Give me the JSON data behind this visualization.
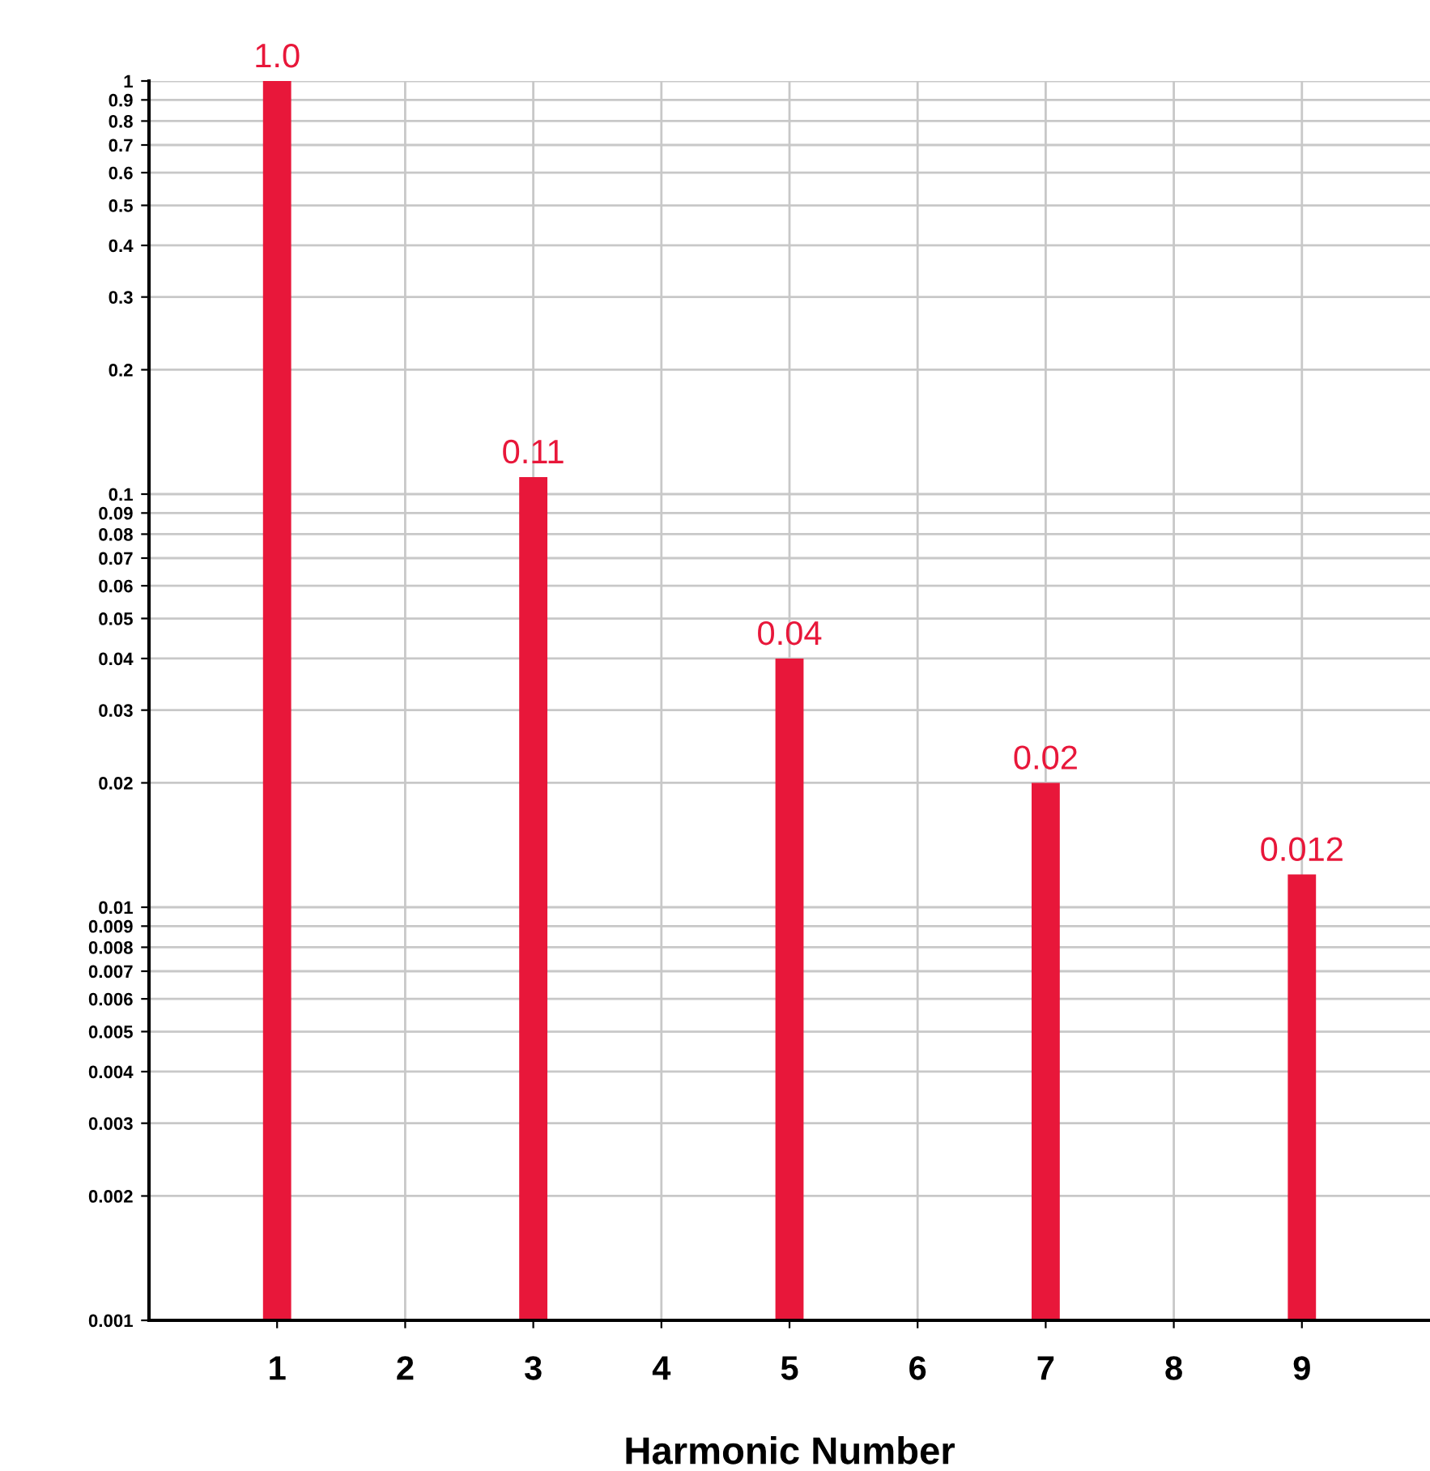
{
  "chart_data": {
    "type": "bar",
    "xlabel": "Harmonic Number",
    "x": [
      1,
      3,
      5,
      7,
      9
    ],
    "series": [
      {
        "color": "#e8173a",
        "values": [
          1.0,
          0.11,
          0.04,
          0.02,
          0.012
        ],
        "value_labels": [
          "1.0",
          "0.11",
          "0.04",
          "0.02",
          "0.012"
        ]
      }
    ],
    "log": "y",
    "xlim": [
      0,
      10
    ],
    "xticks": [
      1,
      2,
      3,
      4,
      5,
      6,
      7,
      8,
      9
    ],
    "ylim": [
      0.001,
      1
    ],
    "yticks": [
      0.001,
      0.002,
      0.003,
      0.004,
      0.005,
      0.006,
      0.007,
      0.008,
      0.009,
      0.01,
      0.02,
      0.03,
      0.04,
      0.05,
      0.06,
      0.07,
      0.08,
      0.09,
      0.1,
      0.2,
      0.3,
      0.4,
      0.5,
      0.6,
      0.7,
      0.8,
      0.9,
      1
    ],
    "grid": true
  }
}
